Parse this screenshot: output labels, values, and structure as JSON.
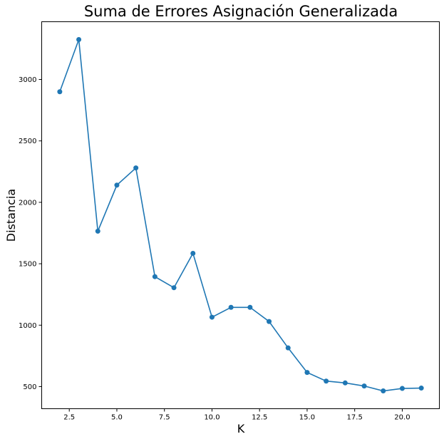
{
  "chart_data": {
    "type": "line",
    "title": "Suma de Errores Asignación Generalizada",
    "xlabel": "K",
    "ylabel": "Distancia",
    "xlim": [
      1.05,
      21.95
    ],
    "ylim": [
      320,
      3470
    ],
    "xticks": [
      2.5,
      5.0,
      7.5,
      10.0,
      12.5,
      15.0,
      17.5,
      20.0
    ],
    "xtick_labels": [
      "2.5",
      "5.0",
      "7.5",
      "10.0",
      "12.5",
      "15.0",
      "17.5",
      "20.0"
    ],
    "yticks": [
      500,
      1000,
      1500,
      2000,
      2500,
      3000
    ],
    "ytick_labels": [
      "500",
      "1000",
      "1500",
      "2000",
      "2500",
      "3000"
    ],
    "grid": false,
    "marker": "circle",
    "color": "#1f77b4",
    "series": [
      {
        "x": [
          2,
          3,
          4,
          5,
          6,
          7,
          8,
          9,
          10,
          11,
          12,
          13,
          14,
          15,
          16,
          17,
          18,
          19,
          20,
          21
        ],
        "values": [
          2900,
          3325,
          1765,
          2140,
          2280,
          1395,
          1305,
          1585,
          1065,
          1145,
          1145,
          1030,
          815,
          615,
          545,
          530,
          505,
          465,
          485,
          488
        ]
      }
    ]
  }
}
